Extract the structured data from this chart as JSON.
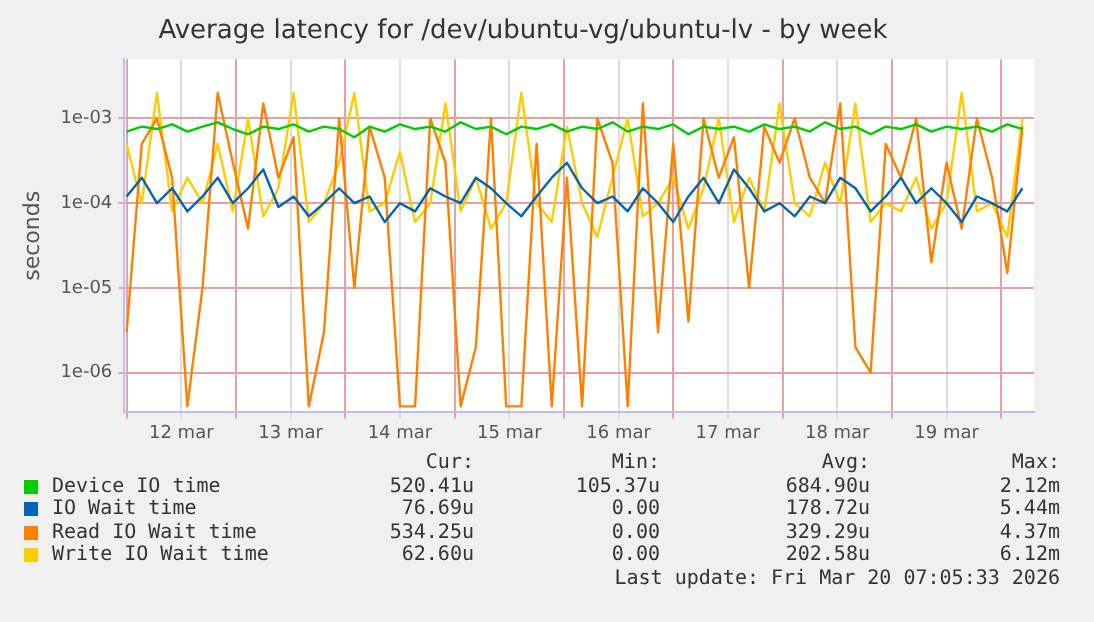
{
  "chart_data": {
    "type": "line",
    "title": "Average latency for /dev/ubuntu-vg/ubuntu-lv - by week",
    "ylabel": "seconds",
    "log": "y",
    "grid": true,
    "legend": "bottom",
    "marker": "none",
    "xlim": [
      "--03-11T23:30",
      "--03-20T07:12"
    ],
    "xticks": [
      {
        "value": "--03-12T00:00",
        "label": null
      },
      {
        "value": "--03-12T12:00",
        "label": "12 mar"
      },
      {
        "value": "--03-13T00:00",
        "label": null
      },
      {
        "value": "--03-13T12:00",
        "label": "13 mar"
      },
      {
        "value": "--03-14T00:00",
        "label": null
      },
      {
        "value": "--03-14T12:00",
        "label": "14 mar"
      },
      {
        "value": "--03-15T00:00",
        "label": null
      },
      {
        "value": "--03-15T12:00",
        "label": "15 mar"
      },
      {
        "value": "--03-16T00:00",
        "label": null
      },
      {
        "value": "--03-16T12:00",
        "label": "16 mar"
      },
      {
        "value": "--03-17T00:00",
        "label": null
      },
      {
        "value": "--03-17T12:00",
        "label": "17 mar"
      },
      {
        "value": "--03-18T00:00",
        "label": null
      },
      {
        "value": "--03-18T12:00",
        "label": "18 mar"
      },
      {
        "value": "--03-19T00:00",
        "label": null
      },
      {
        "value": "--03-19T12:00",
        "label": "19 mar"
      },
      {
        "value": "--03-20T00:00",
        "label": null
      }
    ],
    "ylim": [
      3.4e-07,
      0.005
    ],
    "yticks": [
      {
        "value": 1e-06,
        "label": "1e-06"
      },
      {
        "value": 1e-05,
        "label": "1e-05"
      },
      {
        "value": 0.0001,
        "label": "1e-04"
      },
      {
        "value": 0.001,
        "label": "1e-03"
      }
    ],
    "x": [
      "--03-12T00:00",
      "--03-12T03:20",
      "--03-12T06:40",
      "--03-12T10:00",
      "--03-12T13:20",
      "--03-12T16:40",
      "--03-12T20:00",
      "--03-12T23:20",
      "--03-13T02:40",
      "--03-13T06:00",
      "--03-13T09:20",
      "--03-13T12:40",
      "--03-13T16:00",
      "--03-13T19:20",
      "--03-13T22:40",
      "--03-14T02:00",
      "--03-14T05:20",
      "--03-14T08:40",
      "--03-14T12:00",
      "--03-14T15:20",
      "--03-14T18:40",
      "--03-14T22:00",
      "--03-15T01:20",
      "--03-15T04:40",
      "--03-15T08:00",
      "--03-15T11:20",
      "--03-15T14:40",
      "--03-15T18:00",
      "--03-15T21:20",
      "--03-16T00:40",
      "--03-16T04:00",
      "--03-16T07:20",
      "--03-16T10:40",
      "--03-16T14:00",
      "--03-16T17:20",
      "--03-16T20:40",
      "--03-17T00:00",
      "--03-17T03:20",
      "--03-17T06:40",
      "--03-17T10:00",
      "--03-17T13:20",
      "--03-17T16:40",
      "--03-17T20:00",
      "--03-17T23:20",
      "--03-18T02:40",
      "--03-18T06:00",
      "--03-18T09:20",
      "--03-18T12:40",
      "--03-18T16:00",
      "--03-18T19:20",
      "--03-18T22:40",
      "--03-19T02:00",
      "--03-19T05:20",
      "--03-19T08:40",
      "--03-19T12:00",
      "--03-19T15:20",
      "--03-19T18:40",
      "--03-19T22:00",
      "--03-20T01:20",
      "--03-20T04:40"
    ],
    "series": [
      {
        "name": "Device IO time",
        "color": "#00cc00",
        "values": [
          0.0007,
          0.0008,
          0.00075,
          0.00085,
          0.0007,
          0.0008,
          0.0009,
          0.00075,
          0.00065,
          0.0008,
          0.00075,
          0.00085,
          0.0007,
          0.0008,
          0.00075,
          0.0006,
          0.0008,
          0.0007,
          0.00085,
          0.00075,
          0.0008,
          0.0007,
          0.0009,
          0.00075,
          0.0008,
          0.00065,
          0.0008,
          0.00075,
          0.00085,
          0.0007,
          0.0008,
          0.00075,
          0.0009,
          0.0007,
          0.0008,
          0.00075,
          0.00085,
          0.00065,
          0.0008,
          0.00075,
          0.0008,
          0.0007,
          0.00085,
          0.00075,
          0.0008,
          0.0007,
          0.0009,
          0.00075,
          0.0008,
          0.00065,
          0.0008,
          0.00075,
          0.00085,
          0.0007,
          0.0008,
          0.00075,
          0.0008,
          0.0007,
          0.00085,
          0.00075
        ]
      },
      {
        "name": "IO Wait time",
        "color": "#0066b3",
        "values": [
          0.00012,
          0.0002,
          0.0001,
          0.00015,
          8e-05,
          0.00012,
          0.0002,
          0.0001,
          0.00015,
          0.00025,
          9e-05,
          0.00012,
          7e-05,
          0.0001,
          0.00015,
          0.0001,
          0.00012,
          6e-05,
          0.0001,
          8e-05,
          0.00015,
          0.00012,
          0.0001,
          0.0002,
          0.00015,
          0.0001,
          7e-05,
          0.00012,
          0.0002,
          0.0003,
          0.00015,
          0.0001,
          0.00012,
          8e-05,
          0.00015,
          0.0001,
          6e-05,
          0.00012,
          0.0002,
          0.0001,
          0.00025,
          0.00015,
          8e-05,
          0.0001,
          7e-05,
          0.00012,
          0.0001,
          0.0002,
          0.00015,
          8e-05,
          0.00012,
          0.0002,
          0.0001,
          0.00015,
          0.0001,
          6e-05,
          0.00012,
          0.0001,
          8e-05,
          0.00015
        ]
      },
      {
        "name": "Read IO Wait time",
        "color": "#ff8000",
        "values": [
          3e-06,
          0.0005,
          0.001,
          0.0002,
          4e-07,
          1e-05,
          0.002,
          0.0003,
          5e-05,
          0.0015,
          0.0002,
          0.0006,
          4e-07,
          3e-06,
          0.001,
          1e-05,
          0.0008,
          0.0002,
          4e-07,
          4e-07,
          0.001,
          0.0003,
          4e-07,
          2e-06,
          0.001,
          4e-07,
          4e-07,
          0.0005,
          4e-07,
          0.0002,
          4e-07,
          0.001,
          0.0003,
          4e-07,
          0.0015,
          3e-06,
          0.0005,
          4e-06,
          0.001,
          0.0002,
          0.0006,
          1e-05,
          0.0008,
          0.0003,
          0.001,
          0.0002,
          0.0001,
          0.0015,
          2e-06,
          1e-06,
          0.0005,
          0.0002,
          0.001,
          2e-05,
          0.0003,
          5e-05,
          0.001,
          0.0002,
          1.5e-05,
          0.0008
        ]
      },
      {
        "name": "Write IO Wait time",
        "color": "#ffcc00",
        "values": [
          0.0005,
          0.0001,
          0.002,
          8e-05,
          0.0002,
          0.0001,
          0.0005,
          8e-05,
          0.001,
          7e-05,
          0.00015,
          0.002,
          6e-05,
          0.0001,
          0.0003,
          0.002,
          8e-05,
          0.0001,
          0.0004,
          6e-05,
          0.0001,
          0.0015,
          8e-05,
          0.0002,
          5e-05,
          0.0001,
          0.002,
          0.0001,
          6e-05,
          0.0008,
          0.0001,
          4e-05,
          0.0002,
          0.001,
          7e-05,
          0.0001,
          0.0002,
          5e-05,
          0.00015,
          0.001,
          6e-05,
          0.0002,
          8e-05,
          0.0015,
          0.0001,
          7e-05,
          0.0003,
          0.0001,
          0.0015,
          6e-05,
          0.0001,
          8e-05,
          0.0002,
          5e-05,
          0.0001,
          0.002,
          8e-05,
          0.0001,
          4e-05,
          0.001
        ]
      }
    ],
    "annotations": [
      "Cur:",
      "Min:",
      "Avg:",
      "Max:",
      "520.41u",
      "105.37u",
      "684.90u",
      "2.12m",
      "76.69u",
      "0.00",
      "178.72u",
      "5.44m",
      "534.25u",
      "0.00",
      "329.29u",
      "4.37m",
      "62.60u",
      "0.00",
      "202.58u",
      "6.12m",
      "Last update: Fri Mar 20 07:05:33 2026"
    ]
  }
}
